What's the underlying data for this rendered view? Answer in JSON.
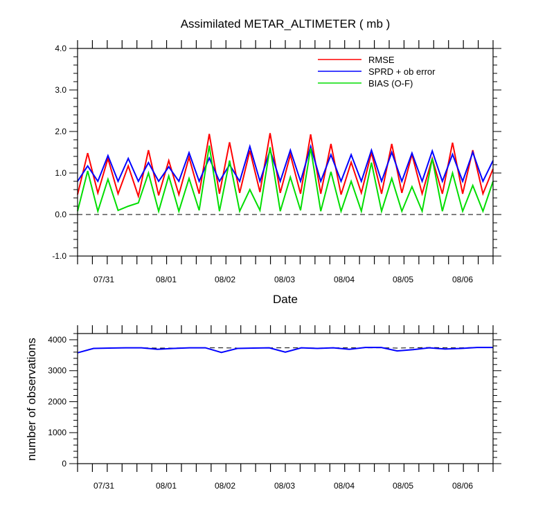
{
  "chart_data": [
    {
      "type": "line",
      "title": "Assimilated METAR_ALTIMETER ( mb )",
      "xlabel": "Date",
      "ylabel": "",
      "ylim": [
        -1.0,
        4.0
      ],
      "yticks": [
        "-1.0",
        "0.0",
        "1.0",
        "2.0",
        "3.0",
        "4.0"
      ],
      "xticks": [
        "07/31",
        "08/01",
        "08/02",
        "08/03",
        "08/04",
        "08/05",
        "08/06"
      ],
      "reference_line": 0.0,
      "legend_position": "top-right",
      "series": [
        {
          "name": "RMSE",
          "color": "#ff0000",
          "values": [
            0.48,
            1.48,
            0.52,
            1.35,
            0.5,
            1.17,
            0.44,
            1.55,
            0.46,
            1.3,
            0.48,
            1.38,
            0.5,
            1.94,
            0.5,
            1.74,
            0.52,
            1.54,
            0.54,
            1.96,
            0.52,
            1.44,
            0.5,
            1.93,
            0.5,
            1.7,
            0.48,
            1.26,
            0.52,
            1.49,
            0.5,
            1.7,
            0.52,
            1.45,
            0.5,
            1.35,
            0.5,
            1.73,
            0.5,
            1.55,
            0.5,
            1.1
          ]
        },
        {
          "name": "SPRD + ob error",
          "color": "#0000ff",
          "values": [
            0.8,
            1.17,
            0.8,
            1.42,
            0.8,
            1.35,
            0.8,
            1.25,
            0.8,
            1.15,
            0.8,
            1.49,
            0.8,
            1.36,
            0.8,
            1.2,
            0.8,
            1.64,
            0.8,
            1.55,
            0.8,
            1.55,
            0.8,
            1.64,
            0.8,
            1.44,
            0.8,
            1.44,
            0.8,
            1.55,
            0.8,
            1.5,
            0.8,
            1.48,
            0.8,
            1.53,
            0.8,
            1.45,
            0.8,
            1.5,
            0.8,
            1.3
          ]
        },
        {
          "name": "BIAS (O-F)",
          "color": "#00dd00",
          "values": [
            0.08,
            1.05,
            0.08,
            0.85,
            0.1,
            0.2,
            0.28,
            1.0,
            0.08,
            0.93,
            0.08,
            0.87,
            0.1,
            1.66,
            0.08,
            1.3,
            0.08,
            0.6,
            0.1,
            1.62,
            0.08,
            0.9,
            0.1,
            1.6,
            0.08,
            1.03,
            0.08,
            0.8,
            0.08,
            1.25,
            0.08,
            0.87,
            0.08,
            0.67,
            0.08,
            1.35,
            0.08,
            1.0,
            0.08,
            0.7,
            0.08,
            0.8
          ]
        }
      ]
    },
    {
      "type": "line",
      "title": "",
      "xlabel": "",
      "ylabel": "number of observations",
      "ylim": [
        0,
        4200
      ],
      "yticks": [
        "0",
        "1000",
        "2000",
        "3000",
        "4000"
      ],
      "xticks": [
        "07/31",
        "08/01",
        "08/02",
        "08/03",
        "08/04",
        "08/05",
        "08/06"
      ],
      "series": [
        {
          "role": "possible",
          "color": "#000000",
          "dashed": true,
          "values": [
            3580,
            3720,
            3730,
            3740,
            3740,
            3730,
            3730,
            3740,
            3740,
            3740,
            3730,
            3730,
            3740,
            3740,
            3740,
            3730,
            3740,
            3740,
            3740,
            3740,
            3730,
            3740,
            3750,
            3740,
            3740,
            3750,
            3750
          ]
        },
        {
          "role": "assimilated",
          "color": "#0000ff",
          "values": [
            3580,
            3720,
            3730,
            3740,
            3740,
            3690,
            3720,
            3740,
            3740,
            3590,
            3720,
            3730,
            3740,
            3600,
            3740,
            3720,
            3740,
            3690,
            3750,
            3750,
            3640,
            3680,
            3740,
            3700,
            3720,
            3750,
            3750
          ]
        }
      ]
    }
  ]
}
